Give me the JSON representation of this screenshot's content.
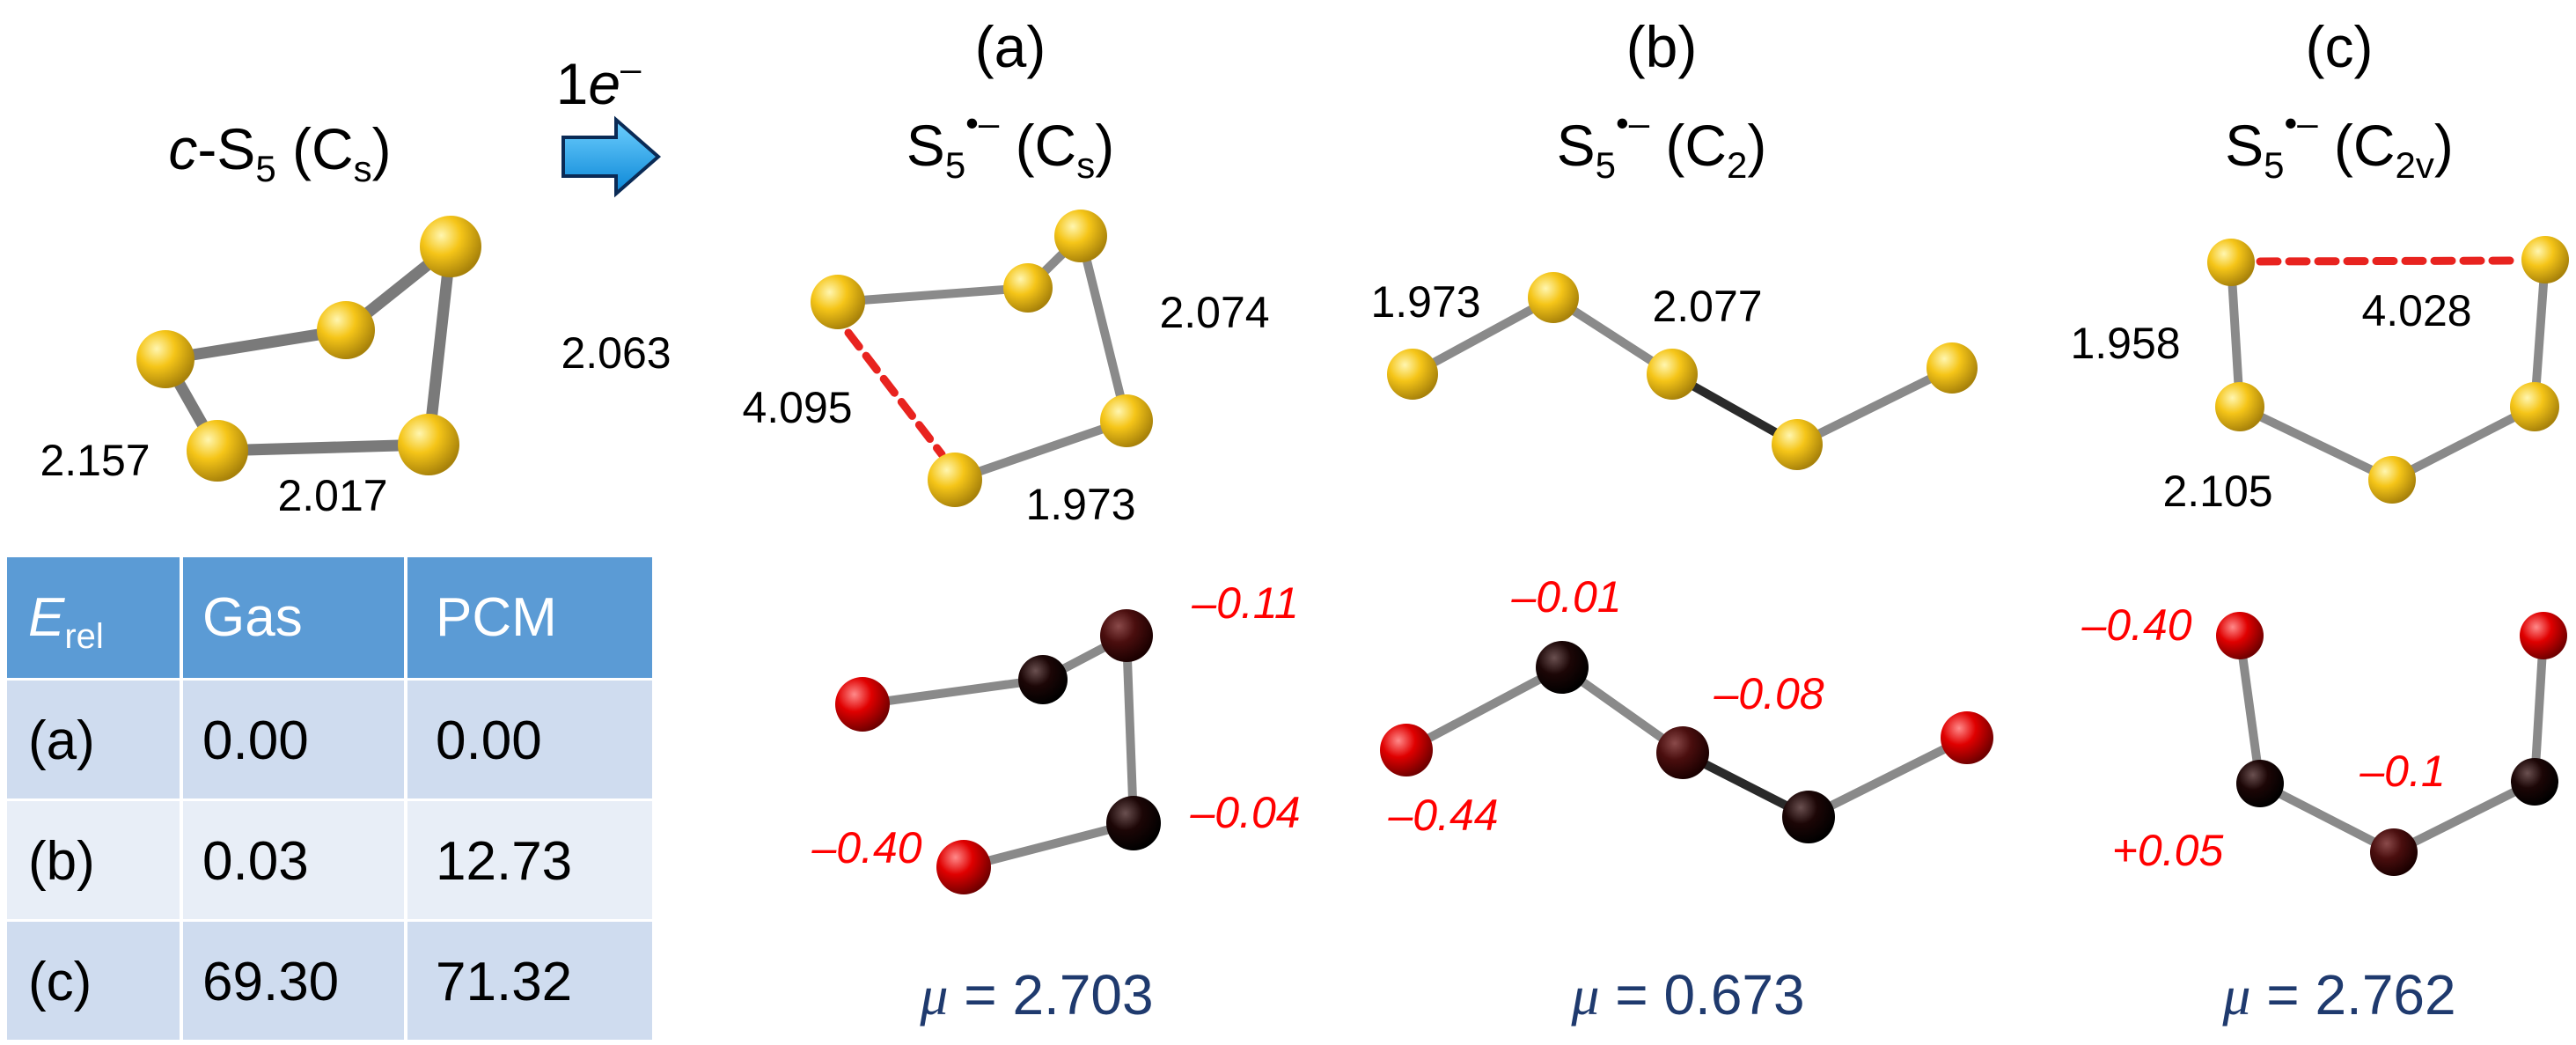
{
  "colors": {
    "sulfur": "#f5c518",
    "bond": "#808080",
    "dashed_bond": "#e8231f",
    "charge_text": "#ff0000",
    "dipole_text": "#1f3a6e",
    "arrow_fill": "#1e9fe6",
    "table_header": "#5b9bd5",
    "table_row_a": "#cfdcef",
    "table_row_b": "#e8eef7",
    "table_row_c": "#cfdcef"
  },
  "reactant": {
    "prefix": "c",
    "title_main": "-S",
    "title_sub": "5",
    "title_pg": " (C",
    "title_pg_sub": "s",
    "title_close": ")",
    "bond_lengths": [
      "2.063",
      "2.157",
      "2.017"
    ]
  },
  "arrow": {
    "label_main": "1",
    "label_e": "e",
    "label_sup": "–",
    "icon": "right-arrow-icon"
  },
  "structures": [
    {
      "label": "(a)",
      "formula": "S",
      "formula_sub": "5",
      "formula_sup": "•–",
      "pg_open": " (C",
      "pg_sub": "s",
      "pg_close": ")",
      "bond_lengths": [
        "2.074",
        "4.095",
        "1.973"
      ],
      "charges": [
        "–0.11",
        "–0.04",
        "–0.40"
      ],
      "mu_symbol": "μ",
      "mu_value": " = 2.703"
    },
    {
      "label": "(b)",
      "formula": "S",
      "formula_sub": "5",
      "formula_sup": "•–",
      "pg_open": " (C",
      "pg_sub": "2",
      "pg_close": ")",
      "bond_lengths": [
        "1.973",
        "2.077"
      ],
      "charges": [
        "–0.01",
        "–0.08",
        "–0.44"
      ],
      "mu_symbol": "μ",
      "mu_value": " = 0.673"
    },
    {
      "label": "(c)",
      "formula": "S",
      "formula_sub": "5",
      "formula_sup": "•–",
      "pg_open": " (C",
      "pg_sub": "2v",
      "pg_close": ")",
      "bond_lengths": [
        "4.028",
        "1.958",
        "2.105"
      ],
      "charges": [
        "–0.40",
        "–0.1",
        "+0.05"
      ],
      "mu_symbol": "μ",
      "mu_value": " = 2.762"
    }
  ],
  "table": {
    "header": {
      "erel_main": "E",
      "erel_sub": "rel",
      "col_gas": "Gas",
      "col_pcm": "PCM"
    },
    "rows": [
      {
        "label": "(a)",
        "gas": "0.00",
        "pcm": "0.00"
      },
      {
        "label": "(b)",
        "gas": "0.03",
        "pcm": "12.73"
      },
      {
        "label": "(c)",
        "gas": "69.30",
        "pcm": "71.32"
      }
    ]
  }
}
